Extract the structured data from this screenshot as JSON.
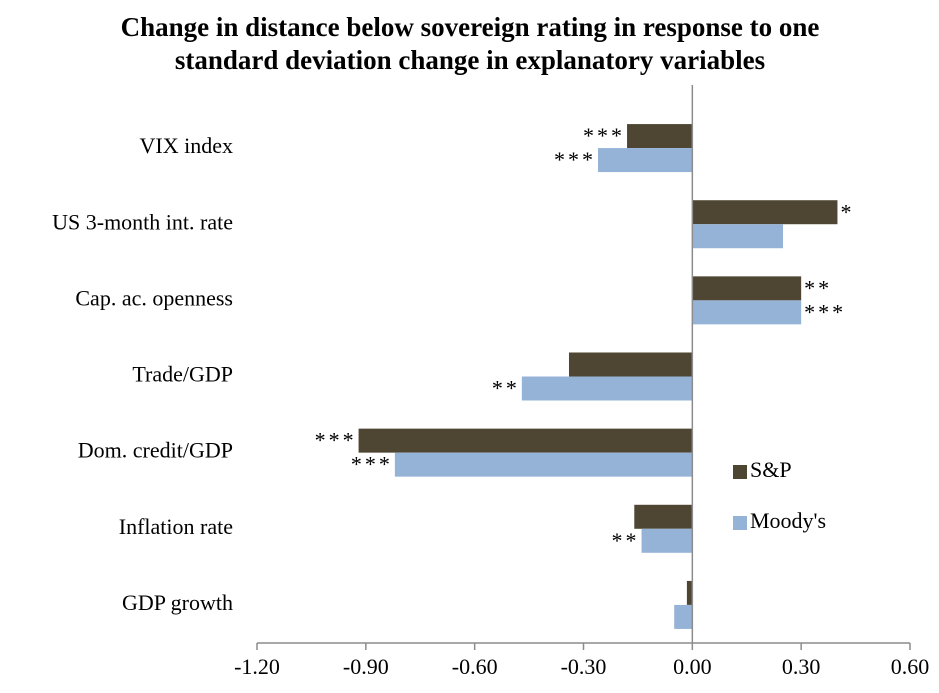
{
  "chart_data": {
    "type": "hbar",
    "title": [
      "Change in distance below sovereign rating in response to one",
      "standard deviation  change in explanatory variables"
    ],
    "categories": [
      "VIX index",
      "US 3-month int. rate",
      "Cap. ac. openness",
      "Trade/GDP",
      "Dom. credit/GDP",
      "Inflation rate",
      "GDP growth"
    ],
    "series": [
      {
        "name": "S&P",
        "color": "#4e4632",
        "values": [
          -0.18,
          0.4,
          0.3,
          -0.34,
          -0.92,
          -0.16,
          -0.015
        ],
        "significance": [
          "***",
          "*",
          "**",
          null,
          "***",
          null,
          null
        ]
      },
      {
        "name": "Moody's",
        "color": "#95b3d7",
        "values": [
          -0.26,
          0.25,
          0.3,
          -0.47,
          -0.82,
          -0.14,
          -0.05
        ],
        "significance": [
          "***",
          null,
          "***",
          "**",
          "***",
          "**",
          null
        ]
      }
    ],
    "xlim": [
      -1.2,
      0.6
    ],
    "xticks": [
      {
        "value": -1.2,
        "label": "-1.20"
      },
      {
        "value": -0.9,
        "label": "-0.90"
      },
      {
        "value": -0.6,
        "label": "-0.60"
      },
      {
        "value": -0.3,
        "label": "-0.30"
      },
      {
        "value": 0,
        "label": "0.00"
      },
      {
        "value": 0.3,
        "label": "0.30"
      },
      {
        "value": 0.6,
        "label": "0.60"
      }
    ],
    "legend": "right"
  }
}
